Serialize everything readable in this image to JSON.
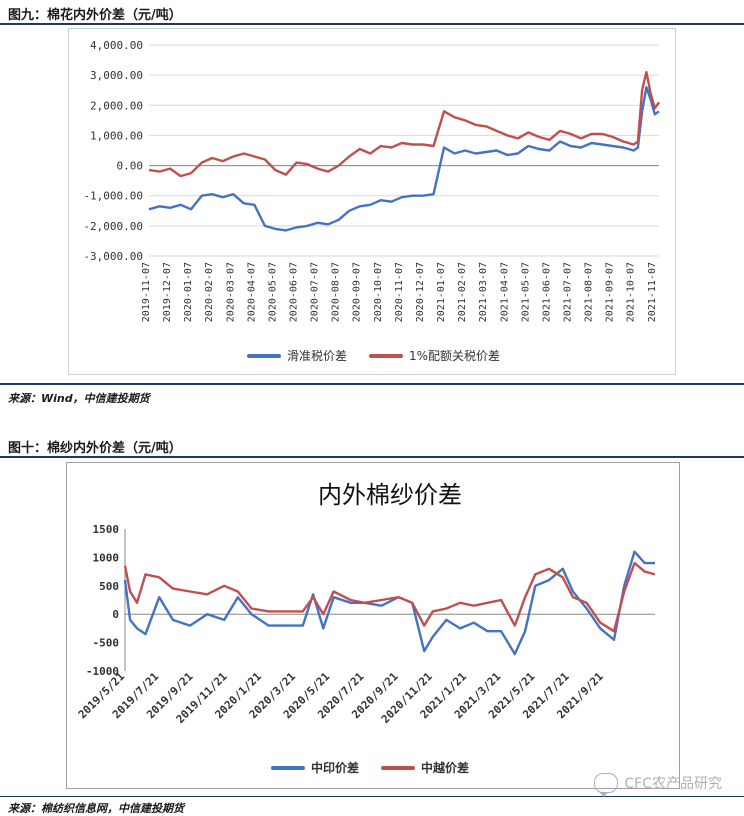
{
  "figures": {
    "fig9": {
      "header": "图九：棉花内外价差（元/吨）",
      "source": "来源：Wind，中信建投期货"
    },
    "fig10": {
      "header": "图十：棉纱内外价差（元/吨）",
      "source": "来源：棉纺织信息网，中信建投期货"
    }
  },
  "watermark": "CFC农产品研究",
  "chart_data": [
    {
      "type": "line",
      "title": "",
      "x_labels": [
        "2019-11-07",
        "2019-12-07",
        "2020-01-07",
        "2020-02-07",
        "2020-03-07",
        "2020-04-07",
        "2020-05-07",
        "2020-06-07",
        "2020-07-07",
        "2020-08-07",
        "2020-09-07",
        "2020-10-07",
        "2020-11-07",
        "2020-12-07",
        "2021-01-07",
        "2021-02-07",
        "2021-03-07",
        "2021-04-07",
        "2021-05-07",
        "2021-06-07",
        "2021-07-07",
        "2021-08-07",
        "2021-09-07",
        "2021-10-07",
        "2021-11-07"
      ],
      "ylim": [
        -3000,
        4000
      ],
      "y_ticks": [
        -3000,
        -2000,
        -1000,
        0,
        1000,
        2000,
        3000,
        4000
      ],
      "y_tick_labels": [
        "-3,000.00",
        "-2,000.00",
        "-1,000.00",
        "0.00",
        "1,000.00",
        "2,000.00",
        "3,000.00",
        "4,000.00"
      ],
      "grid": true,
      "legend_position": "bottom",
      "series": [
        {
          "name": "滑准税价差",
          "color": "#4472c4",
          "x": [
            0,
            0.5,
            1,
            1.5,
            2,
            2.5,
            3,
            3.5,
            4,
            4.5,
            5,
            5.5,
            6,
            6.5,
            7,
            7.5,
            8,
            8.5,
            9,
            9.5,
            10,
            10.5,
            11,
            11.5,
            12,
            12.5,
            13,
            13.5,
            14,
            14.5,
            15,
            15.5,
            16,
            16.5,
            17,
            17.5,
            18,
            18.5,
            19,
            19.5,
            20,
            20.5,
            21,
            21.5,
            22,
            22.5,
            23,
            23.2,
            23.4,
            23.6,
            23.8,
            24,
            24.2
          ],
          "y": [
            -1450,
            -1350,
            -1400,
            -1300,
            -1450,
            -1000,
            -950,
            -1050,
            -950,
            -1250,
            -1300,
            -2000,
            -2100,
            -2150,
            -2050,
            -2000,
            -1900,
            -1950,
            -1800,
            -1500,
            -1350,
            -1300,
            -1150,
            -1200,
            -1050,
            -1000,
            -1000,
            -950,
            600,
            400,
            500,
            400,
            450,
            500,
            350,
            400,
            650,
            550,
            500,
            800,
            650,
            600,
            750,
            700,
            650,
            600,
            500,
            600,
            1800,
            2600,
            2200,
            1700,
            1800
          ]
        },
        {
          "name": "1%配额关税价差",
          "color": "#c0504d",
          "x": [
            0,
            0.5,
            1,
            1.5,
            2,
            2.5,
            3,
            3.5,
            4,
            4.5,
            5,
            5.5,
            6,
            6.5,
            7,
            7.5,
            8,
            8.5,
            9,
            9.5,
            10,
            10.5,
            11,
            11.5,
            12,
            12.5,
            13,
            13.5,
            14,
            14.5,
            15,
            15.5,
            16,
            16.5,
            17,
            17.5,
            18,
            18.5,
            19,
            19.5,
            20,
            20.5,
            21,
            21.5,
            22,
            22.5,
            23,
            23.2,
            23.4,
            23.6,
            23.8,
            24,
            24.2
          ],
          "y": [
            -150,
            -200,
            -100,
            -350,
            -250,
            100,
            250,
            150,
            300,
            400,
            300,
            200,
            -150,
            -300,
            100,
            50,
            -100,
            -200,
            0,
            300,
            550,
            400,
            650,
            600,
            750,
            700,
            700,
            650,
            1800,
            1600,
            1500,
            1350,
            1300,
            1150,
            1000,
            900,
            1100,
            950,
            850,
            1150,
            1050,
            900,
            1050,
            1050,
            950,
            800,
            700,
            800,
            2500,
            3100,
            2400,
            1900,
            2100
          ]
        }
      ]
    },
    {
      "type": "line",
      "title": "内外棉纱价差",
      "x_labels": [
        "2019/5/21",
        "2019/7/21",
        "2019/9/21",
        "2019/11/21",
        "2020/1/21",
        "2020/3/21",
        "2020/5/21",
        "2020/7/21",
        "2020/9/21",
        "2020/11/21",
        "2021/1/21",
        "2021/3/21",
        "2021/5/21",
        "2021/7/21",
        "2021/9/21"
      ],
      "ylim": [
        -1000,
        1500
      ],
      "y_ticks": [
        -1000,
        -500,
        0,
        500,
        1000,
        1500
      ],
      "y_tick_labels": [
        "-1000",
        "-500",
        "0",
        "500",
        "1000",
        "1500"
      ],
      "grid": false,
      "legend_position": "bottom",
      "series": [
        {
          "name": "中印价差",
          "color": "#4472c4",
          "x": [
            0,
            0.15,
            0.35,
            0.6,
            1,
            1.4,
            1.9,
            2.4,
            2.9,
            3.3,
            3.7,
            4.2,
            4.7,
            5.2,
            5.5,
            5.8,
            6.1,
            6.6,
            7.0,
            7.5,
            8.0,
            8.4,
            8.75,
            9.0,
            9.4,
            9.8,
            10.2,
            10.6,
            11.0,
            11.4,
            11.7,
            12.0,
            12.4,
            12.8,
            13.1,
            13.5,
            13.9,
            14.3,
            14.6,
            14.9,
            15.2,
            15.5
          ],
          "y": [
            600,
            -100,
            -250,
            -350,
            300,
            -100,
            -200,
            0,
            -100,
            300,
            0,
            -200,
            -200,
            -200,
            350,
            -250,
            300,
            200,
            200,
            150,
            300,
            200,
            -650,
            -400,
            -100,
            -250,
            -150,
            -300,
            -300,
            -700,
            -300,
            500,
            600,
            800,
            400,
            100,
            -250,
            -450,
            500,
            1100,
            900,
            900
          ]
        },
        {
          "name": "中越价差",
          "color": "#c0504d",
          "x": [
            0,
            0.15,
            0.35,
            0.6,
            1,
            1.4,
            1.9,
            2.4,
            2.9,
            3.3,
            3.7,
            4.2,
            4.7,
            5.2,
            5.5,
            5.8,
            6.1,
            6.6,
            7.0,
            7.5,
            8.0,
            8.4,
            8.75,
            9.0,
            9.4,
            9.8,
            10.2,
            10.6,
            11.0,
            11.4,
            11.7,
            12.0,
            12.4,
            12.8,
            13.1,
            13.5,
            13.9,
            14.3,
            14.6,
            14.9,
            15.2,
            15.5
          ],
          "y": [
            850,
            400,
            200,
            700,
            650,
            450,
            400,
            350,
            500,
            400,
            100,
            50,
            50,
            50,
            300,
            0,
            400,
            250,
            200,
            250,
            300,
            200,
            -200,
            50,
            100,
            200,
            150,
            200,
            250,
            -200,
            300,
            700,
            800,
            650,
            300,
            200,
            -150,
            -300,
            400,
            900,
            750,
            700
          ]
        }
      ]
    }
  ]
}
